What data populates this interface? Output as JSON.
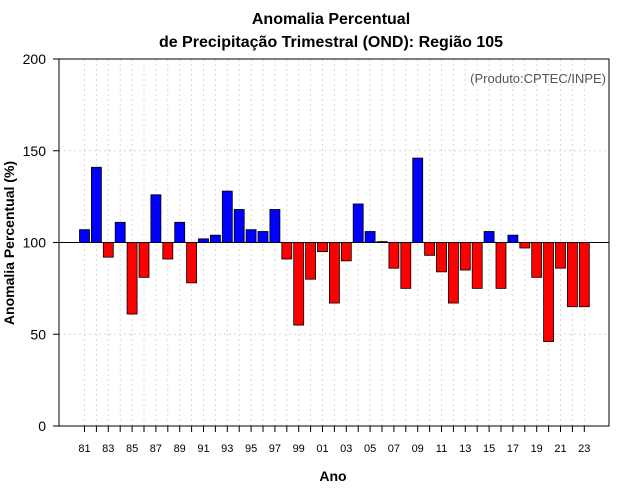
{
  "chart_data": {
    "type": "bar",
    "title": "Anomalia Percentual",
    "subtitle": "de Precipitação Trimestral (OND): Região 105",
    "credit": "(Produto:CPTEC/INPE)",
    "xlabel": "Ano",
    "ylabel": "Anomalia Percentual (%)",
    "ylim": [
      0,
      200
    ],
    "yticks": [
      0,
      50,
      100,
      150,
      200
    ],
    "baseline": 100,
    "xtick_labels": [
      "81",
      "83",
      "85",
      "87",
      "89",
      "91",
      "93",
      "95",
      "97",
      "99",
      "01",
      "03",
      "05",
      "07",
      "09",
      "11",
      "13",
      "15",
      "17",
      "19",
      "21",
      "23"
    ],
    "categories": [
      "1981",
      "1982",
      "1983",
      "1984",
      "1985",
      "1986",
      "1987",
      "1988",
      "1989",
      "1990",
      "1991",
      "1992",
      "1993",
      "1994",
      "1995",
      "1996",
      "1997",
      "1998",
      "1999",
      "2000",
      "2001",
      "2002",
      "2003",
      "2004",
      "2005",
      "2006",
      "2007",
      "2008",
      "2009",
      "2010",
      "2011",
      "2012",
      "2013",
      "2014",
      "2015",
      "2016",
      "2017",
      "2018",
      "2019",
      "2020",
      "2021",
      "2022",
      "2023"
    ],
    "values": [
      107,
      141,
      92,
      111,
      61,
      81,
      126,
      91,
      111,
      78,
      102,
      104,
      128,
      118,
      107,
      106,
      118,
      91,
      55,
      80,
      95,
      67,
      90,
      121,
      106,
      100.5,
      86,
      75,
      146,
      93,
      84,
      67,
      85,
      75,
      106,
      75,
      104,
      97,
      81,
      46,
      86,
      65,
      65
    ],
    "colors": {
      "above": "#0000ff",
      "below": "#ff0000"
    }
  }
}
